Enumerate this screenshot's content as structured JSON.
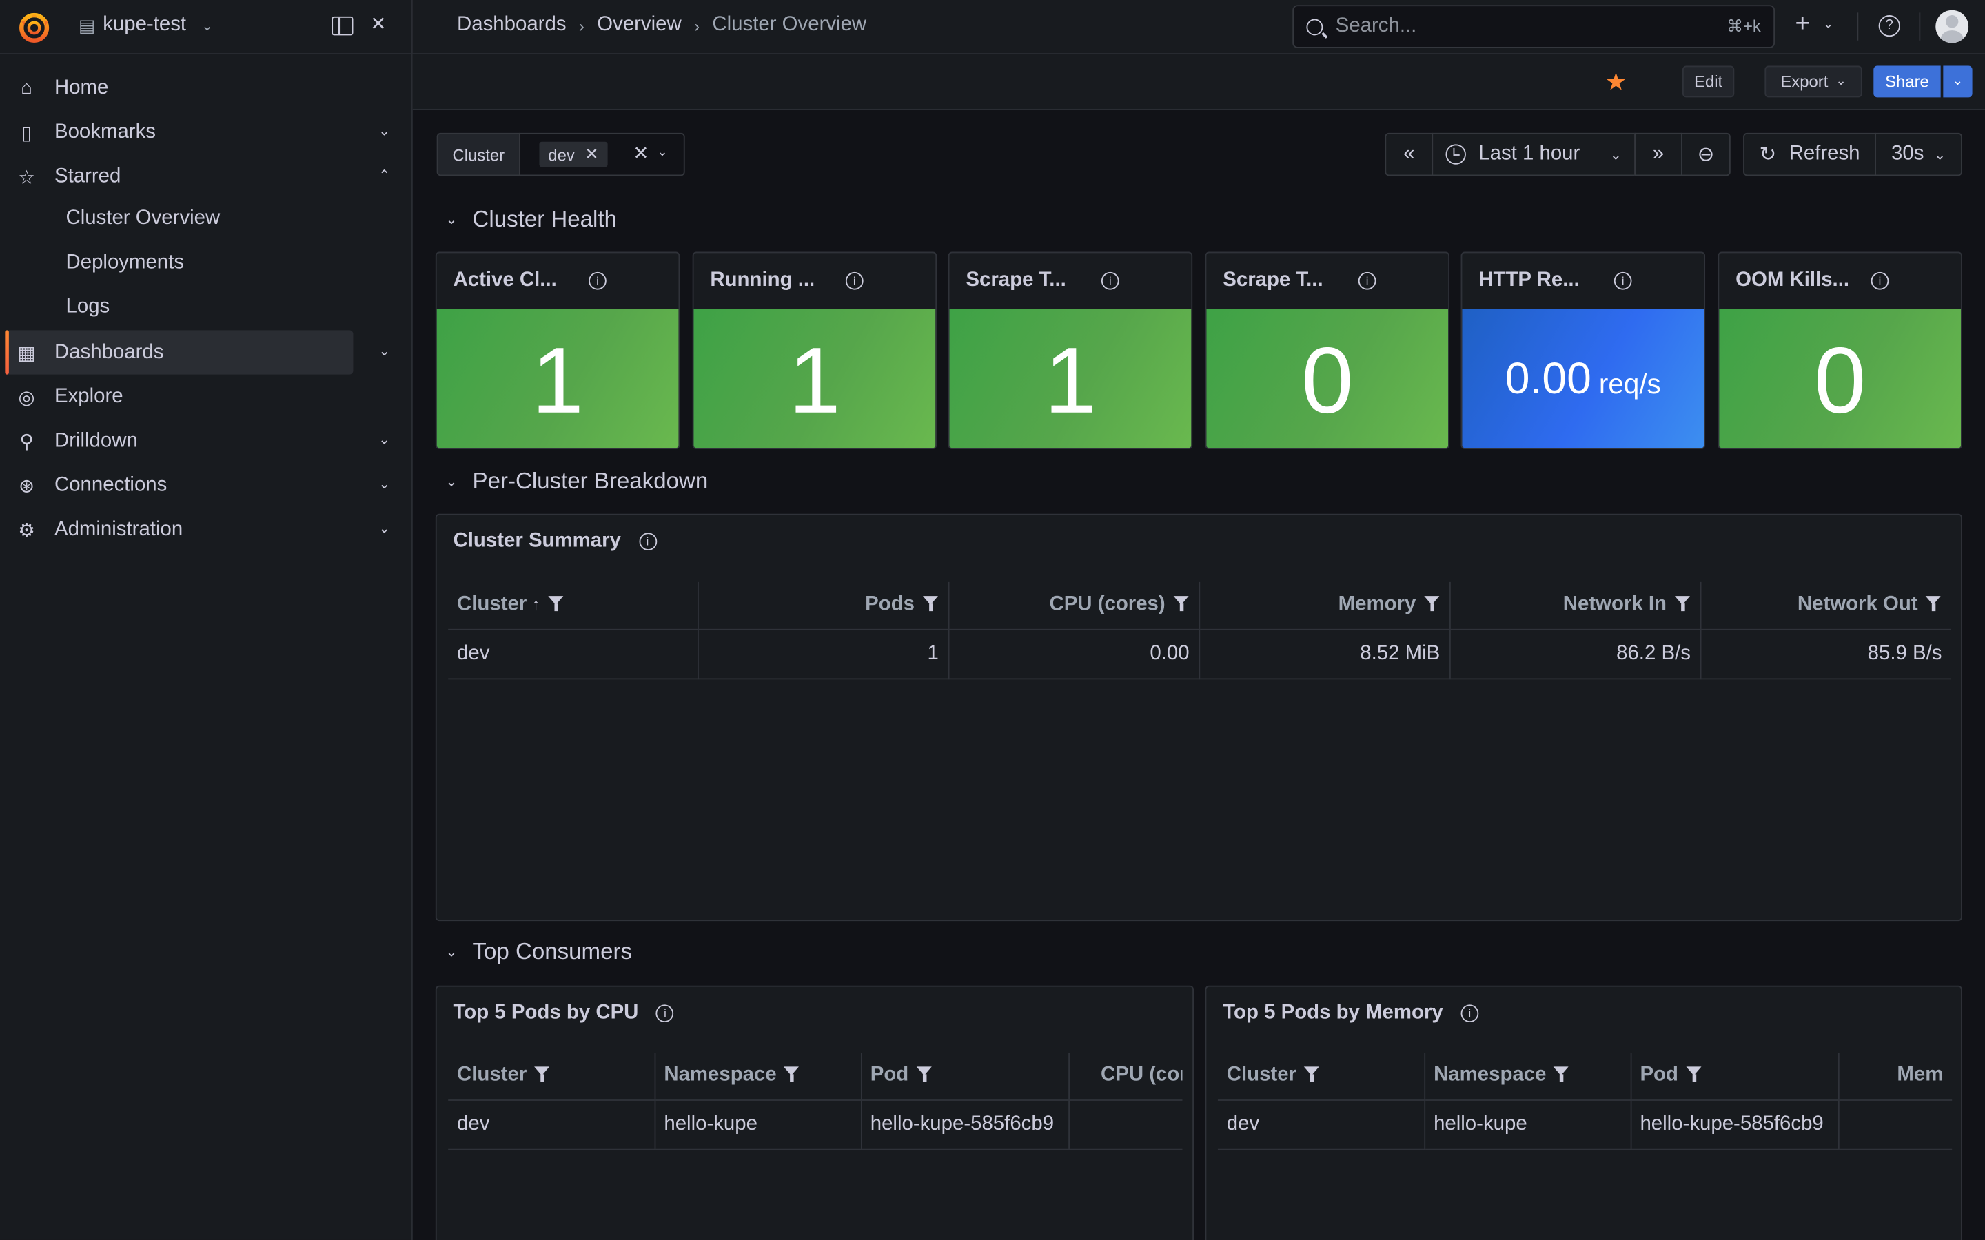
{
  "topbar": {
    "org_name": "kupe-test",
    "breadcrumbs": [
      "Dashboards",
      "Overview",
      "Cluster Overview"
    ],
    "search_placeholder": "Search...",
    "search_shortcut": "⌘+k"
  },
  "sidebar": {
    "items": [
      {
        "label": "Home",
        "icon": "home-icon"
      },
      {
        "label": "Bookmarks",
        "icon": "bookmark-icon"
      },
      {
        "label": "Starred",
        "icon": "star-icon"
      },
      {
        "label": "Dashboards",
        "icon": "dashboards-icon"
      },
      {
        "label": "Explore",
        "icon": "compass-icon"
      },
      {
        "label": "Drilldown",
        "icon": "drilldown-icon"
      },
      {
        "label": "Connections",
        "icon": "connections-icon"
      },
      {
        "label": "Administration",
        "icon": "gear-icon"
      }
    ],
    "starred_children": [
      "Cluster Overview",
      "Deployments",
      "Logs"
    ]
  },
  "toolbar": {
    "edit_label": "Edit",
    "export_label": "Export",
    "share_label": "Share"
  },
  "variables": {
    "cluster_label": "Cluster",
    "cluster_value": "dev"
  },
  "time": {
    "range_label": "Last 1 hour",
    "refresh_label": "Refresh",
    "interval": "30s"
  },
  "rows": {
    "health": "Cluster Health",
    "breakdown": "Per-Cluster Breakdown",
    "consumers": "Top Consumers"
  },
  "stats": [
    {
      "title": "Active Cl...",
      "value": "1",
      "color": "green"
    },
    {
      "title": "Running ...",
      "value": "1",
      "color": "green"
    },
    {
      "title": "Scrape T...",
      "value": "1",
      "color": "green"
    },
    {
      "title": "Scrape T...",
      "value": "0",
      "color": "green"
    },
    {
      "title": "HTTP Re...",
      "value": "0.00",
      "unit": "req/s",
      "color": "blue"
    },
    {
      "title": "OOM Kills...",
      "value": "0",
      "color": "green"
    }
  ],
  "summary": {
    "title": "Cluster Summary",
    "columns": [
      "Cluster",
      "Pods",
      "CPU (cores)",
      "Memory",
      "Network In",
      "Network Out"
    ],
    "rows": [
      [
        "dev",
        "1",
        "0.00",
        "8.52 MiB",
        "86.2 B/s",
        "85.9 B/s"
      ]
    ]
  },
  "top_cpu": {
    "title": "Top 5 Pods by CPU",
    "columns": [
      "Cluster",
      "Namespace",
      "Pod",
      "CPU (cor"
    ],
    "rows": [
      [
        "dev",
        "hello-kupe",
        "hello-kupe-585f6cb9",
        ""
      ]
    ]
  },
  "top_mem": {
    "title": "Top 5 Pods by Memory",
    "columns": [
      "Cluster",
      "Namespace",
      "Pod",
      "Mem"
    ],
    "rows": [
      [
        "dev",
        "hello-kupe",
        "hello-kupe-585f6cb9",
        ""
      ]
    ]
  },
  "colors": {
    "accent": "#ff8833",
    "stat_green": "#56a64b",
    "stat_blue": "#2f6bf0",
    "primary_button": "#3d71d9"
  }
}
